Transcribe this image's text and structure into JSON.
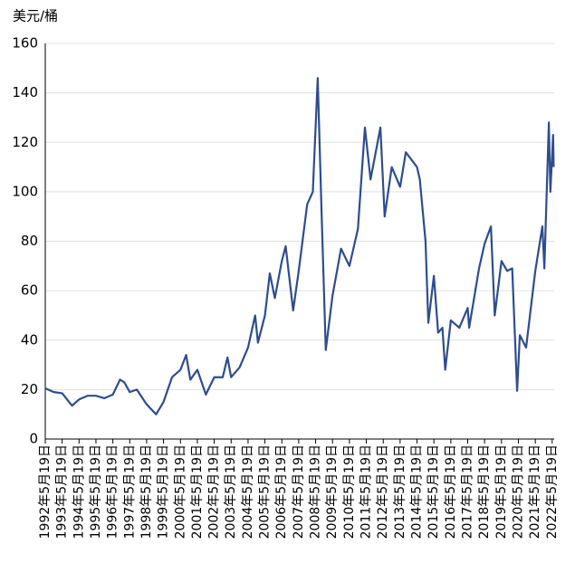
{
  "chart_data": {
    "type": "line",
    "y_label": "美元/桶",
    "x": [
      "1992-05-19",
      "1992-11-19",
      "1993-05-19",
      "1993-12-19",
      "1994-05-19",
      "1994-11-19",
      "1995-05-19",
      "1995-11-19",
      "1996-05-19",
      "1996-10-19",
      "1997-01-19",
      "1997-05-19",
      "1997-10-19",
      "1998-05-19",
      "1998-12-10",
      "1999-05-19",
      "1999-11-19",
      "2000-05-19",
      "2000-09-19",
      "2000-12-19",
      "2001-05-19",
      "2001-11-19",
      "2002-05-19",
      "2002-11-19",
      "2003-03-01",
      "2003-05-19",
      "2003-11-19",
      "2004-05-19",
      "2004-10-19",
      "2004-12-19",
      "2005-05-19",
      "2005-09-01",
      "2005-12-19",
      "2006-05-19",
      "2006-08-10",
      "2007-01-19",
      "2007-05-19",
      "2007-11-19",
      "2008-03-19",
      "2008-07-03",
      "2008-09-19",
      "2008-12-24",
      "2009-05-19",
      "2009-11-19",
      "2010-05-19",
      "2010-11-19",
      "2011-04-19",
      "2011-08-19",
      "2012-03-19",
      "2012-06-19",
      "2012-11-19",
      "2013-05-19",
      "2013-09-19",
      "2014-05-19",
      "2014-07-19",
      "2014-11-19",
      "2015-01-19",
      "2015-05-19",
      "2015-08-19",
      "2015-11-19",
      "2016-01-19",
      "2016-05-19",
      "2016-11-19",
      "2017-05-19",
      "2017-06-19",
      "2018-01-19",
      "2018-05-19",
      "2018-10-03",
      "2018-12-24",
      "2019-05-19",
      "2019-09-19",
      "2020-01-06",
      "2020-04-21",
      "2020-06-19",
      "2020-11-01",
      "2021-05-19",
      "2021-10-19",
      "2021-12-01",
      "2022-03-08",
      "2022-04-10",
      "2022-06-08",
      "2022-06-20"
    ],
    "series": [
      {
        "color": "#2e4d8f",
        "values": [
          20.5,
          19,
          18.5,
          13.5,
          16,
          17.5,
          17.5,
          16.5,
          18,
          24,
          23,
          19,
          20,
          14,
          10,
          15,
          25,
          28,
          34,
          24,
          28,
          18,
          25,
          25,
          33,
          25,
          29,
          37,
          50,
          39,
          50,
          67,
          57,
          72,
          78,
          52,
          68,
          95,
          100,
          146,
          95,
          36,
          58,
          77,
          70,
          85,
          126,
          105,
          126,
          90,
          110,
          102,
          116,
          110,
          105,
          80,
          47,
          66,
          43,
          45,
          28,
          48,
          45,
          53,
          45,
          69,
          79,
          86,
          50,
          72,
          68,
          69,
          19.5,
          42,
          37,
          68,
          86,
          69,
          128,
          100,
          123,
          110
        ]
      }
    ],
    "xlim": [
      "1992-05-19",
      "2022-07-01"
    ],
    "ylim": [
      0,
      160
    ],
    "yticks": [
      0,
      20,
      40,
      60,
      80,
      100,
      120,
      140,
      160
    ],
    "grid": true,
    "xticks": [
      {
        "value": "1992-05-19",
        "label": "1992年5月19日"
      },
      {
        "value": "1993-05-19",
        "label": "1993年5月19日"
      },
      {
        "value": "1994-05-19",
        "label": "1994年5月19日"
      },
      {
        "value": "1995-05-19",
        "label": "1995年5月19日"
      },
      {
        "value": "1996-05-19",
        "label": "1996年5月19日"
      },
      {
        "value": "1997-05-19",
        "label": "1997年5月19日"
      },
      {
        "value": "1998-05-19",
        "label": "1998年5月19日"
      },
      {
        "value": "1999-05-19",
        "label": "1999年5月19日"
      },
      {
        "value": "2000-05-19",
        "label": "2000年5月19日"
      },
      {
        "value": "2001-05-19",
        "label": "2001年5月19日"
      },
      {
        "value": "2002-05-19",
        "label": "2002年5月19日"
      },
      {
        "value": "2003-05-19",
        "label": "2003年5月19日"
      },
      {
        "value": "2004-05-19",
        "label": "2004年5月19日"
      },
      {
        "value": "2005-05-19",
        "label": "2005年5月19日"
      },
      {
        "value": "2006-05-19",
        "label": "2006年5月19日"
      },
      {
        "value": "2007-05-19",
        "label": "2007年5月19日"
      },
      {
        "value": "2008-05-19",
        "label": "2008年5月19日"
      },
      {
        "value": "2009-05-19",
        "label": "2009年5月19日"
      },
      {
        "value": "2010-05-19",
        "label": "2010年5月19日"
      },
      {
        "value": "2011-05-19",
        "label": "2011年5月19日"
      },
      {
        "value": "2012-05-19",
        "label": "2012年5月19日"
      },
      {
        "value": "2013-05-19",
        "label": "2013年5月19日"
      },
      {
        "value": "2014-05-19",
        "label": "2014年5月19日"
      },
      {
        "value": "2015-05-19",
        "label": "2015年5月19日"
      },
      {
        "value": "2016-05-19",
        "label": "2016年5月19日"
      },
      {
        "value": "2017-05-19",
        "label": "2017年5月19日"
      },
      {
        "value": "2018-05-19",
        "label": "2018年5月19日"
      },
      {
        "value": "2019-05-19",
        "label": "2019年5月19日"
      },
      {
        "value": "2020-05-19",
        "label": "2020年5月19日"
      },
      {
        "value": "2021-05-19",
        "label": "2021年5月19日"
      },
      {
        "value": "2022-05-19",
        "label": "2022年5月19日"
      }
    ]
  }
}
